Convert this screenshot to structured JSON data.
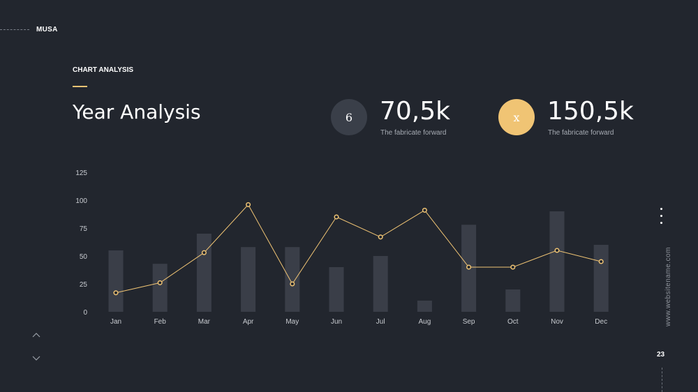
{
  "brand": {
    "name": "MUSA"
  },
  "header": {
    "section_label": "CHART ANALYSIS",
    "title": "Year Analysis"
  },
  "kpis": [
    {
      "icon_text": "6",
      "value": "70,5k",
      "caption": "The fabricate forward",
      "circle_color": "#3a3f49",
      "icon_color": "#ffffff"
    },
    {
      "icon_text": "x",
      "value": "150,5k",
      "caption": "The fabricate forward",
      "circle_color": "#f0c474",
      "icon_color": "#ffffff"
    }
  ],
  "side": {
    "website": "www.websitename.com",
    "page_number": "23"
  },
  "colors": {
    "background": "#22262e",
    "bar": "#3a3e48",
    "line": "#f0c474",
    "axis_text": "#c9ccd1"
  },
  "chart_data": {
    "type": "bar",
    "categories": [
      "Jan",
      "Feb",
      "Mar",
      "Apr",
      "May",
      "Jun",
      "Jul",
      "Aug",
      "Sep",
      "Oct",
      "Nov",
      "Dec"
    ],
    "series": [
      {
        "type": "bar",
        "values": [
          55,
          43,
          70,
          58,
          58,
          40,
          50,
          10,
          78,
          20,
          90,
          60
        ]
      },
      {
        "type": "line",
        "values": [
          17,
          26,
          53,
          96,
          25,
          85,
          67,
          91,
          40,
          40,
          55,
          45
        ]
      }
    ],
    "yticks": [
      0,
      25,
      50,
      75,
      100,
      125
    ],
    "ylim": [
      0,
      125
    ],
    "grid": false,
    "legend": "none"
  }
}
